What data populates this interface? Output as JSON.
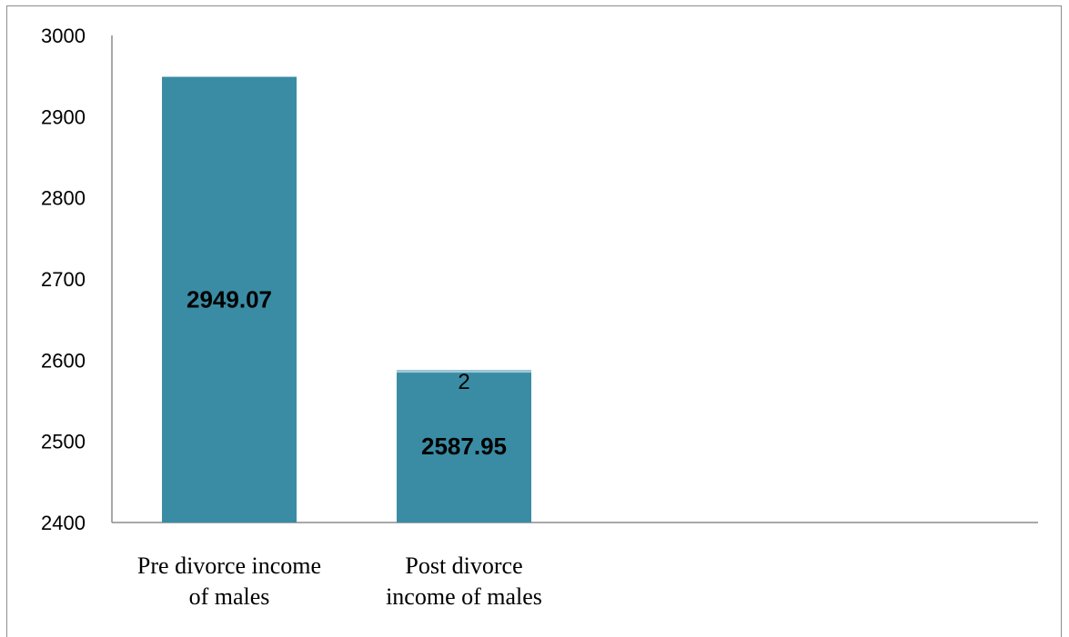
{
  "chart_data": {
    "type": "bar",
    "categories": [
      [
        "Pre divorce income",
        "of males"
      ],
      [
        "Post divorce",
        "income of males"
      ]
    ],
    "values": [
      2949.07,
      2587.95
    ],
    "value_labels": [
      "2949.07",
      "2587.95"
    ],
    "extra_labels": [
      "",
      "2"
    ],
    "ylim": [
      2400,
      3000
    ],
    "yticks": [
      2400,
      2500,
      2600,
      2700,
      2800,
      2900,
      3000
    ],
    "bar_color": "#3a8ca4",
    "cap_color": "#9ec8d6",
    "grid": false,
    "legend": false
  }
}
